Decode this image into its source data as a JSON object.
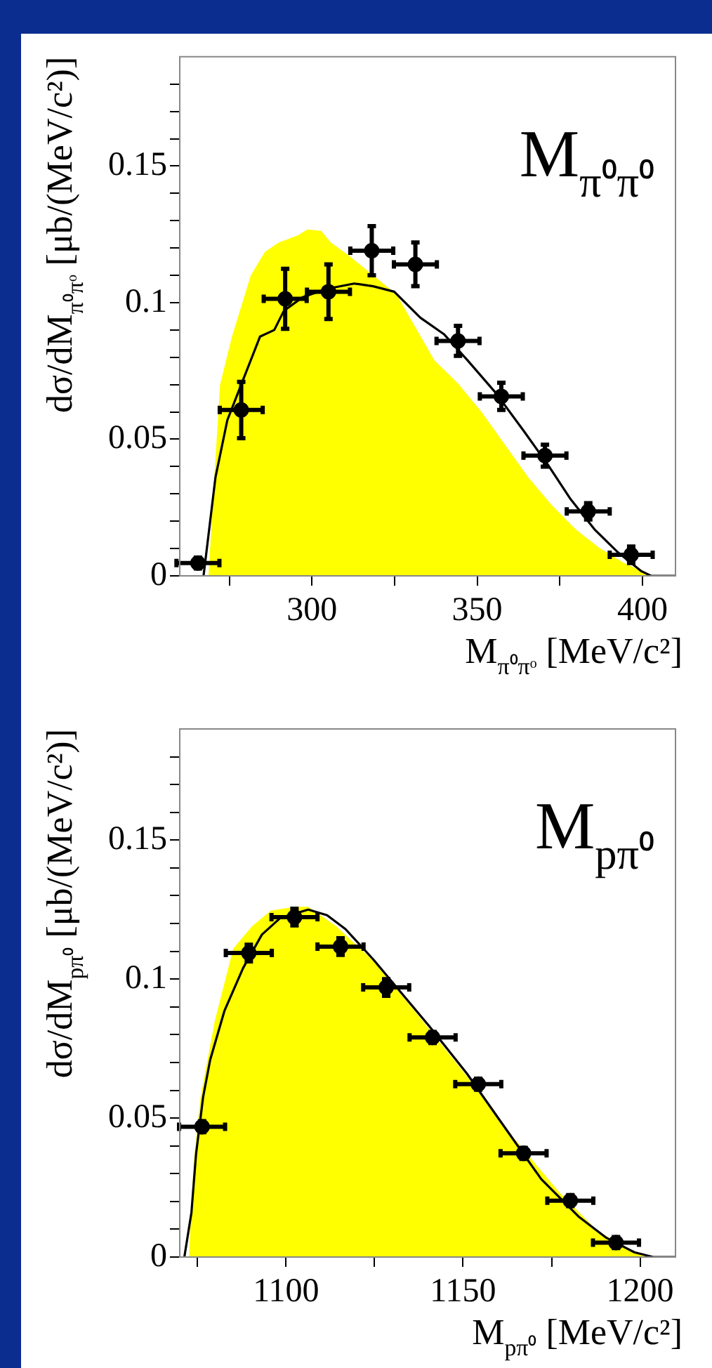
{
  "chart_data": [
    {
      "type": "scatter",
      "xlabel": "M$_{π⁰πᵒ}$ [MeV/c²]",
      "ylabel": "dσ/dM$_{π⁰πᵒ}$ [μb/(MeV/c²)]",
      "annotations": [
        "M$_{π⁰π⁰}$"
      ],
      "xlim": [
        260,
        410
      ],
      "ylim": [
        0,
        0.19
      ],
      "xticks": [
        {
          "value": 275,
          "label": null
        },
        300,
        {
          "value": 325,
          "label": null
        },
        350,
        {
          "value": 375,
          "label": null
        },
        400
      ],
      "yticks": [
        0,
        {
          "value": 0.01,
          "label": null
        },
        {
          "value": 0.02,
          "label": null
        },
        {
          "value": 0.03,
          "label": null
        },
        {
          "value": 0.04,
          "label": null
        },
        0.05,
        {
          "value": 0.06,
          "label": null
        },
        {
          "value": 0.07,
          "label": null
        },
        {
          "value": 0.08,
          "label": null
        },
        {
          "value": 0.09,
          "label": null
        },
        0.1,
        {
          "value": 0.11,
          "label": null
        },
        {
          "value": 0.12,
          "label": null
        },
        {
          "value": 0.13,
          "label": null
        },
        {
          "value": 0.14,
          "label": null
        },
        0.15,
        {
          "value": 0.16,
          "label": null
        },
        {
          "value": 0.17,
          "label": null
        },
        {
          "value": 0.18,
          "label": null
        }
      ],
      "grid": false,
      "legend": false,
      "series": [
        {
          "type": "area",
          "color": "#ffff00",
          "x": [
            268.7,
            270.1,
            272.2,
            275.8,
            281.5,
            285.8,
            290,
            295.7,
            298.6,
            302.8,
            305.7,
            311.4,
            318.5,
            325.6,
            331.3,
            337,
            344.2,
            351.3,
            358.4,
            365.5,
            372.6,
            379.8,
            386.9,
            394,
            401.1,
            404,
            410
          ],
          "values": [
            0,
            0.029,
            0.07,
            0.0876,
            0.11,
            0.1186,
            0.122,
            0.1246,
            0.1268,
            0.1263,
            0.122,
            0.117,
            0.11,
            0.103,
            0.091,
            0.079,
            0.0704,
            0.06,
            0.048,
            0.036,
            0.0258,
            0.017,
            0.0103,
            0.005,
            0.0009,
            0,
            0
          ]
        },
        {
          "type": "line",
          "color": "#000000",
          "x": [
            267.2,
            270.8,
            274.4,
            278.6,
            284.3,
            288.6,
            291.5,
            297.2,
            304.3,
            312.8,
            318.5,
            324.9,
            332.8,
            339.9,
            347,
            355.6,
            364.1,
            371.2,
            378.3,
            385.5,
            392.6,
            399.7,
            402.6,
            410
          ],
          "values": [
            0,
            0.036,
            0.057,
            0.07,
            0.0876,
            0.09,
            0.097,
            0.102,
            0.105,
            0.107,
            0.106,
            0.104,
            0.0945,
            0.0885,
            0.079,
            0.067,
            0.053,
            0.041,
            0.028,
            0.017,
            0.0086,
            0.0017,
            0,
            0
          ]
        },
        {
          "type": "scatter",
          "color": "#000000",
          "marker": "circle",
          "x": [
            265.5,
            278.6,
            291.9,
            305,
            318.1,
            331.3,
            344.2,
            357.3,
            370.5,
            383.6,
            396.6
          ],
          "values": [
            0.0047,
            0.0607,
            0.1014,
            0.104,
            0.119,
            0.114,
            0.086,
            0.0657,
            0.044,
            0.0236,
            0.0077
          ],
          "errors": [
            0.002,
            0.0103,
            0.011,
            0.01,
            0.009,
            0.008,
            0.0055,
            0.005,
            0.004,
            0.003,
            0.003
          ],
          "xerrors": [
            6.5,
            6.5,
            6.5,
            6.5,
            6.5,
            6.5,
            6.5,
            6.5,
            6.5,
            6.5,
            6.5
          ]
        }
      ]
    },
    {
      "type": "scatter",
      "xlabel": "M$_{pπ⁰}$ [MeV/c²]",
      "ylabel": "dσ/dM$_{pπ⁰}$ [μb/(MeV/c²)]",
      "annotations": [
        "M$_{pπ⁰}$"
      ],
      "xlim": [
        1070,
        1210
      ],
      "ylim": [
        0,
        0.19
      ],
      "xticks": [
        {
          "value": 1075,
          "label": null
        },
        1100,
        {
          "value": 1125,
          "label": null
        },
        1150,
        {
          "value": 1175,
          "label": null
        },
        1200
      ],
      "yticks": [
        0,
        {
          "value": 0.01,
          "label": null
        },
        {
          "value": 0.02,
          "label": null
        },
        {
          "value": 0.03,
          "label": null
        },
        {
          "value": 0.04,
          "label": null
        },
        0.05,
        {
          "value": 0.06,
          "label": null
        },
        {
          "value": 0.07,
          "label": null
        },
        {
          "value": 0.08,
          "label": null
        },
        {
          "value": 0.09,
          "label": null
        },
        0.1,
        {
          "value": 0.11,
          "label": null
        },
        {
          "value": 0.12,
          "label": null
        },
        {
          "value": 0.13,
          "label": null
        },
        {
          "value": 0.14,
          "label": null
        },
        0.15,
        {
          "value": 0.16,
          "label": null
        },
        {
          "value": 0.17,
          "label": null
        },
        {
          "value": 0.18,
          "label": null
        }
      ],
      "grid": false,
      "legend": false,
      "series": [
        {
          "type": "area",
          "color": "#ffff00",
          "x": [
            1072.6,
            1073.9,
            1075.9,
            1079.9,
            1085.1,
            1090.4,
            1095.7,
            1102.4,
            1106.3,
            1114.2,
            1124.7,
            1137.9,
            1151.1,
            1164.2,
            1177.4,
            1187.9,
            1198.4,
            1203.7,
            1210
          ],
          "values": [
            0,
            0.0335,
            0.0576,
            0.085,
            0.111,
            0.119,
            0.1246,
            0.126,
            0.126,
            0.119,
            0.1065,
            0.086,
            0.065,
            0.043,
            0.023,
            0.0095,
            0.0017,
            0,
            0
          ]
        },
        {
          "type": "line",
          "color": "#000000",
          "x": [
            1071.3,
            1073.3,
            1074.6,
            1076.6,
            1078.6,
            1082.6,
            1087.9,
            1093.2,
            1098.4,
            1106.3,
            1111.6,
            1116.8,
            1124.7,
            1132.6,
            1140.5,
            1151.1,
            1161.6,
            1172.1,
            1182.6,
            1190.5,
            1198.4,
            1203.7,
            1210
          ],
          "values": [
            0,
            0.016,
            0.037,
            0.0576,
            0.071,
            0.0885,
            0.104,
            0.116,
            0.122,
            0.125,
            0.123,
            0.118,
            0.107,
            0.095,
            0.083,
            0.066,
            0.047,
            0.028,
            0.0146,
            0.0069,
            0.0017,
            0,
            0
          ]
        },
        {
          "type": "scatter",
          "color": "#000000",
          "marker": "circle",
          "x": [
            1076.3,
            1089.5,
            1102.4,
            1115.4,
            1128.3,
            1141.4,
            1154.3,
            1167.1,
            1180.3,
            1193.2
          ],
          "values": [
            0.0469,
            0.1094,
            0.1223,
            0.1117,
            0.097,
            0.079,
            0.0622,
            0.0373,
            0.0203,
            0.0052
          ],
          "errors": [
            0.002,
            0.003,
            0.003,
            0.003,
            0.003,
            0.002,
            0.002,
            0.002,
            0.002,
            0.002
          ],
          "xerrors": [
            6.5,
            6.5,
            6.5,
            6.5,
            6.5,
            6.5,
            6.5,
            6.5,
            6.5,
            6.5
          ]
        }
      ]
    }
  ]
}
